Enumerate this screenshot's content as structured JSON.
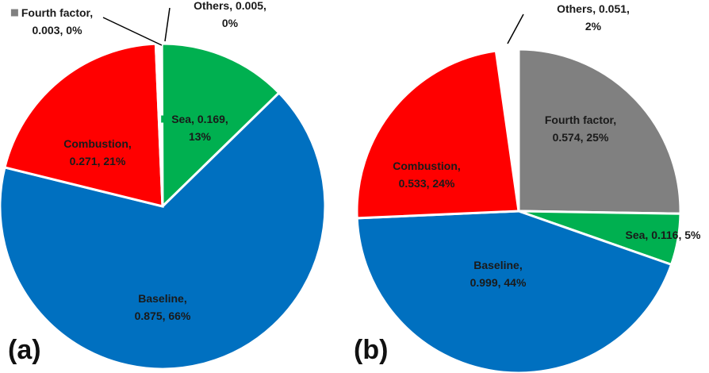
{
  "chart_data": [
    {
      "type": "pie",
      "panel_label": "(a)",
      "slices": [
        {
          "name": "Others",
          "value": 0.005,
          "percent": "0%",
          "color": "#ffffff",
          "label": [
            "Others, 0.005,",
            "0%"
          ]
        },
        {
          "name": "Sea",
          "value": 0.169,
          "percent": "13%",
          "color": "#00b050",
          "label": [
            "Sea, 0.169,",
            "13%"
          ]
        },
        {
          "name": "Baseline",
          "value": 0.875,
          "percent": "66%",
          "color": "#0070c0",
          "label": [
            "Baseline,",
            "0.875, 66%"
          ]
        },
        {
          "name": "Combustion",
          "value": 0.271,
          "percent": "21%",
          "color": "#ff0000",
          "label": [
            "Combustion,",
            "0.271, 21%"
          ]
        },
        {
          "name": "Fourth factor",
          "value": 0.003,
          "percent": "0%",
          "color": "#808080",
          "label": [
            "Fourth factor,",
            "0.003, 0%"
          ]
        }
      ]
    },
    {
      "type": "pie",
      "panel_label": "(b)",
      "slices": [
        {
          "name": "Fourth factor",
          "value": 0.574,
          "percent": "25%",
          "color": "#808080",
          "label": [
            "Fourth factor,",
            "0.574, 25%"
          ]
        },
        {
          "name": "Sea",
          "value": 0.116,
          "percent": "5%",
          "color": "#00b050",
          "label": [
            "Sea, 0.116, 5%"
          ]
        },
        {
          "name": "Baseline",
          "value": 0.999,
          "percent": "44%",
          "color": "#0070c0",
          "label": [
            "Baseline,",
            "0.999, 44%"
          ]
        },
        {
          "name": "Combustion",
          "value": 0.533,
          "percent": "24%",
          "color": "#ff0000",
          "label": [
            "Combustion,",
            "0.533, 24%"
          ]
        },
        {
          "name": "Others",
          "value": 0.051,
          "percent": "2%",
          "color": "#ffffff",
          "label": [
            "Others, 0.051,",
            "2%"
          ]
        }
      ]
    }
  ]
}
